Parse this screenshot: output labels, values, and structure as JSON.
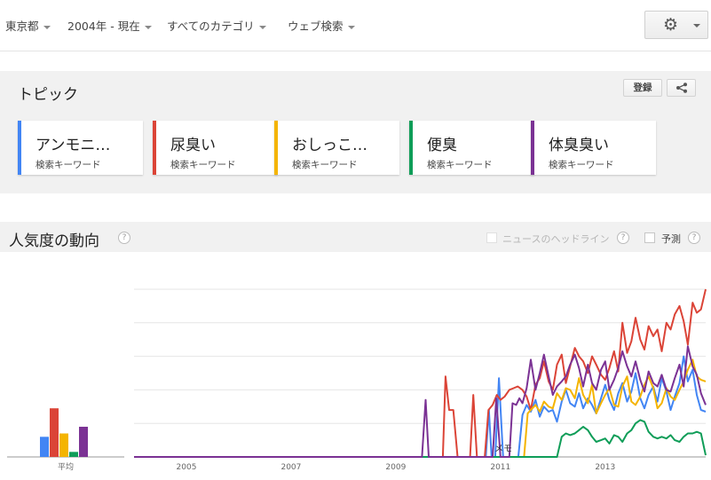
{
  "filters": [
    {
      "label": "東京都"
    },
    {
      "label": "2004年 - 現在"
    },
    {
      "label": "すべてのカテゴリ"
    },
    {
      "label": "ウェブ検索"
    }
  ],
  "topics": {
    "title": "トピック",
    "register_label": "登録",
    "cards": [
      {
        "keyword": "アンモニ…",
        "type": "検索キーワード",
        "color": "#4285f4"
      },
      {
        "keyword": "尿臭い",
        "type": "検索キーワード",
        "color": "#db4437"
      },
      {
        "keyword": "おしっこ…",
        "type": "検索キーワード",
        "color": "#f4b400"
      },
      {
        "keyword": "便臭",
        "type": "検索キーワード",
        "color": "#0f9d58"
      },
      {
        "keyword": "体臭臭い",
        "type": "検索キーワード",
        "color": "#7b3294"
      }
    ]
  },
  "interest": {
    "title": "人気度の動向",
    "news_label": "ニュースのヘッドライン",
    "forecast_label": "予測",
    "help_glyph": "?"
  },
  "chart_data": {
    "type": "line",
    "x_ticks": [
      "2005",
      "2007",
      "2009",
      "2011",
      "2013"
    ],
    "x_range": [
      2004.0,
      2014.92
    ],
    "y_range": [
      0,
      100
    ],
    "average_label": "平均",
    "note_label": "メモ",
    "averages": [
      12,
      29,
      14,
      3,
      18
    ],
    "series": [
      {
        "color": "#4285f4",
        "points": [
          [
            2004.0,
            0
          ],
          [
            2010.72,
            0
          ],
          [
            2010.78,
            28
          ],
          [
            2010.83,
            0
          ],
          [
            2010.9,
            0
          ],
          [
            2010.97,
            47
          ],
          [
            2011.05,
            0
          ],
          [
            2011.12,
            0
          ],
          [
            2011.2,
            0
          ],
          [
            2011.28,
            0
          ],
          [
            2011.34,
            0
          ],
          [
            2011.42,
            25
          ],
          [
            2011.5,
            31
          ],
          [
            2011.58,
            27
          ],
          [
            2011.67,
            34
          ],
          [
            2011.75,
            24
          ],
          [
            2011.83,
            30
          ],
          [
            2011.92,
            27
          ],
          [
            2012.0,
            28
          ],
          [
            2012.08,
            21
          ],
          [
            2012.17,
            33
          ],
          [
            2012.25,
            40
          ],
          [
            2012.33,
            32
          ],
          [
            2012.42,
            30
          ],
          [
            2012.5,
            38
          ],
          [
            2012.58,
            29
          ],
          [
            2012.67,
            35
          ],
          [
            2012.75,
            31
          ],
          [
            2012.83,
            26
          ],
          [
            2012.92,
            35
          ],
          [
            2013.0,
            43
          ],
          [
            2013.08,
            34
          ],
          [
            2013.17,
            28
          ],
          [
            2013.25,
            38
          ],
          [
            2013.33,
            44
          ],
          [
            2013.42,
            33
          ],
          [
            2013.5,
            39
          ],
          [
            2013.58,
            50
          ],
          [
            2013.67,
            35
          ],
          [
            2013.75,
            29
          ],
          [
            2013.83,
            37
          ],
          [
            2013.92,
            42
          ],
          [
            2014.0,
            33
          ],
          [
            2014.08,
            47
          ],
          [
            2014.17,
            39
          ],
          [
            2014.25,
            28
          ],
          [
            2014.33,
            36
          ],
          [
            2014.42,
            44
          ],
          [
            2014.5,
            60
          ],
          [
            2014.58,
            45
          ],
          [
            2014.67,
            52
          ],
          [
            2014.75,
            37
          ],
          [
            2014.83,
            28
          ],
          [
            2014.92,
            27
          ]
        ]
      },
      {
        "color": "#db4437",
        "points": [
          [
            2004.0,
            0
          ],
          [
            2009.9,
            0
          ],
          [
            2009.95,
            48
          ],
          [
            2010.02,
            28
          ],
          [
            2010.1,
            28
          ],
          [
            2010.18,
            0
          ],
          [
            2010.25,
            0
          ],
          [
            2010.35,
            0
          ],
          [
            2010.42,
            0
          ],
          [
            2010.48,
            37
          ],
          [
            2010.55,
            0
          ],
          [
            2010.62,
            0
          ],
          [
            2010.7,
            0
          ],
          [
            2010.77,
            28
          ],
          [
            2010.85,
            31
          ],
          [
            2010.93,
            37
          ],
          [
            2011.0,
            34
          ],
          [
            2011.08,
            36
          ],
          [
            2011.17,
            40
          ],
          [
            2011.25,
            41
          ],
          [
            2011.33,
            42
          ],
          [
            2011.42,
            40
          ],
          [
            2011.5,
            36
          ],
          [
            2011.58,
            28
          ],
          [
            2011.67,
            43
          ],
          [
            2011.75,
            47
          ],
          [
            2011.83,
            57
          ],
          [
            2011.92,
            45
          ],
          [
            2012.0,
            40
          ],
          [
            2012.08,
            55
          ],
          [
            2012.17,
            61
          ],
          [
            2012.25,
            44
          ],
          [
            2012.33,
            54
          ],
          [
            2012.42,
            65
          ],
          [
            2012.5,
            60
          ],
          [
            2012.58,
            57
          ],
          [
            2012.67,
            50
          ],
          [
            2012.75,
            60
          ],
          [
            2012.83,
            55
          ],
          [
            2012.92,
            49
          ],
          [
            2013.0,
            46
          ],
          [
            2013.08,
            53
          ],
          [
            2013.17,
            63
          ],
          [
            2013.25,
            51
          ],
          [
            2013.33,
            80
          ],
          [
            2013.42,
            62
          ],
          [
            2013.5,
            69
          ],
          [
            2013.58,
            83
          ],
          [
            2013.67,
            70
          ],
          [
            2013.75,
            64
          ],
          [
            2013.83,
            78
          ],
          [
            2013.92,
            72
          ],
          [
            2014.0,
            76
          ],
          [
            2014.08,
            63
          ],
          [
            2014.17,
            80
          ],
          [
            2014.25,
            76
          ],
          [
            2014.33,
            85
          ],
          [
            2014.42,
            90
          ],
          [
            2014.5,
            81
          ],
          [
            2014.58,
            67
          ],
          [
            2014.67,
            92
          ],
          [
            2014.75,
            86
          ],
          [
            2014.83,
            88
          ],
          [
            2014.92,
            100
          ]
        ]
      },
      {
        "color": "#f4b400",
        "points": [
          [
            2004.0,
            0
          ],
          [
            2011.37,
            0
          ],
          [
            2011.45,
            0
          ],
          [
            2011.52,
            26
          ],
          [
            2011.58,
            28
          ],
          [
            2011.67,
            31
          ],
          [
            2011.75,
            27
          ],
          [
            2011.83,
            33
          ],
          [
            2011.92,
            30
          ],
          [
            2012.0,
            29
          ],
          [
            2012.08,
            38
          ],
          [
            2012.17,
            34
          ],
          [
            2012.25,
            41
          ],
          [
            2012.33,
            40
          ],
          [
            2012.42,
            35
          ],
          [
            2012.5,
            47
          ],
          [
            2012.58,
            37
          ],
          [
            2012.67,
            32
          ],
          [
            2012.75,
            43
          ],
          [
            2012.83,
            26
          ],
          [
            2012.92,
            32
          ],
          [
            2013.0,
            37
          ],
          [
            2013.08,
            41
          ],
          [
            2013.17,
            31
          ],
          [
            2013.25,
            30
          ],
          [
            2013.33,
            42
          ],
          [
            2013.42,
            48
          ],
          [
            2013.5,
            33
          ],
          [
            2013.58,
            31
          ],
          [
            2013.67,
            36
          ],
          [
            2013.75,
            43
          ],
          [
            2013.83,
            48
          ],
          [
            2013.92,
            41
          ],
          [
            2014.0,
            29
          ],
          [
            2014.08,
            32
          ],
          [
            2014.17,
            41
          ],
          [
            2014.25,
            36
          ],
          [
            2014.33,
            34
          ],
          [
            2014.42,
            40
          ],
          [
            2014.5,
            45
          ],
          [
            2014.58,
            52
          ],
          [
            2014.67,
            58
          ],
          [
            2014.75,
            48
          ],
          [
            2014.83,
            46
          ],
          [
            2014.92,
            45
          ]
        ]
      },
      {
        "color": "#0f9d58",
        "points": [
          [
            2004.0,
            0
          ],
          [
            2012.0,
            0
          ],
          [
            2012.08,
            0
          ],
          [
            2012.17,
            12
          ],
          [
            2012.25,
            14
          ],
          [
            2012.33,
            13
          ],
          [
            2012.42,
            14
          ],
          [
            2012.5,
            16
          ],
          [
            2012.58,
            18
          ],
          [
            2012.67,
            16
          ],
          [
            2012.75,
            12
          ],
          [
            2012.83,
            9
          ],
          [
            2012.92,
            10
          ],
          [
            2013.0,
            11
          ],
          [
            2013.08,
            8
          ],
          [
            2013.17,
            13
          ],
          [
            2013.25,
            12
          ],
          [
            2013.33,
            9
          ],
          [
            2013.42,
            14
          ],
          [
            2013.5,
            16
          ],
          [
            2013.58,
            20
          ],
          [
            2013.67,
            22
          ],
          [
            2013.75,
            21
          ],
          [
            2013.83,
            15
          ],
          [
            2013.92,
            12
          ],
          [
            2014.0,
            11
          ],
          [
            2014.08,
            12
          ],
          [
            2014.17,
            11
          ],
          [
            2014.25,
            13
          ],
          [
            2014.33,
            10
          ],
          [
            2014.42,
            9
          ],
          [
            2014.5,
            12
          ],
          [
            2014.58,
            14
          ],
          [
            2014.67,
            14
          ],
          [
            2014.75,
            15
          ],
          [
            2014.83,
            14
          ],
          [
            2014.92,
            1
          ]
        ]
      },
      {
        "color": "#7b3294",
        "points": [
          [
            2004.0,
            0
          ],
          [
            2009.5,
            0
          ],
          [
            2009.57,
            34
          ],
          [
            2009.63,
            0
          ],
          [
            2009.75,
            0
          ],
          [
            2010.85,
            0
          ],
          [
            2010.92,
            35
          ],
          [
            2011.0,
            0
          ],
          [
            2011.08,
            0
          ],
          [
            2011.17,
            0
          ],
          [
            2011.23,
            32
          ],
          [
            2011.3,
            31
          ],
          [
            2011.36,
            35
          ],
          [
            2011.42,
            32
          ],
          [
            2011.5,
            41
          ],
          [
            2011.58,
            58
          ],
          [
            2011.67,
            40
          ],
          [
            2011.75,
            50
          ],
          [
            2011.83,
            61
          ],
          [
            2011.92,
            48
          ],
          [
            2012.0,
            37
          ],
          [
            2012.08,
            42
          ],
          [
            2012.17,
            45
          ],
          [
            2012.25,
            48
          ],
          [
            2012.33,
            55
          ],
          [
            2012.42,
            61
          ],
          [
            2012.5,
            53
          ],
          [
            2012.58,
            42
          ],
          [
            2012.67,
            55
          ],
          [
            2012.75,
            44
          ],
          [
            2012.83,
            40
          ],
          [
            2012.92,
            52
          ],
          [
            2013.0,
            57
          ],
          [
            2013.08,
            40
          ],
          [
            2013.17,
            46
          ],
          [
            2013.25,
            53
          ],
          [
            2013.33,
            63
          ],
          [
            2013.42,
            54
          ],
          [
            2013.5,
            48
          ],
          [
            2013.58,
            57
          ],
          [
            2013.67,
            46
          ],
          [
            2013.75,
            39
          ],
          [
            2013.83,
            51
          ],
          [
            2013.92,
            44
          ],
          [
            2014.0,
            42
          ],
          [
            2014.08,
            49
          ],
          [
            2014.17,
            40
          ],
          [
            2014.25,
            39
          ],
          [
            2014.33,
            47
          ],
          [
            2014.42,
            55
          ],
          [
            2014.5,
            42
          ],
          [
            2014.58,
            66
          ],
          [
            2014.67,
            54
          ],
          [
            2014.75,
            49
          ],
          [
            2014.83,
            38
          ],
          [
            2014.92,
            31
          ]
        ]
      }
    ]
  }
}
